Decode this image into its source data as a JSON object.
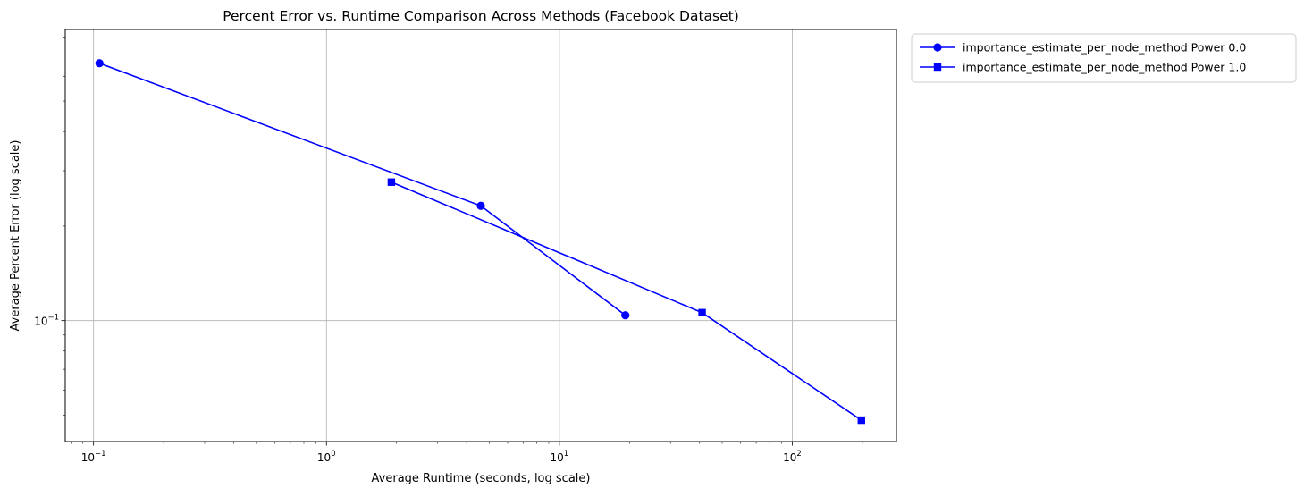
{
  "chart_data": {
    "type": "line",
    "title": "Percent Error vs. Runtime Comparison Across Methods (Facebook Dataset)",
    "xlabel": "Average Runtime (seconds, log scale)",
    "ylabel": "Average Percent Error (log scale)",
    "xscale": "log",
    "yscale": "log",
    "xlim": [
      0.0756,
      280
    ],
    "ylim": [
      0.0412,
      0.845
    ],
    "x_ticks": [
      {
        "value": 0.1,
        "base": "10",
        "exp": "−1"
      },
      {
        "value": 1,
        "base": "10",
        "exp": "0"
      },
      {
        "value": 10,
        "base": "10",
        "exp": "1"
      },
      {
        "value": 100,
        "base": "10",
        "exp": "2"
      }
    ],
    "y_ticks": [
      {
        "value": 0.1,
        "base": "10",
        "exp": "−1"
      }
    ],
    "grid": true,
    "legend_position": "outside upper right",
    "series": [
      {
        "name": "importance_estimate_per_node_method Power 0.0",
        "marker": "circle",
        "color": "#0000ff",
        "x": [
          0.106,
          4.6,
          19.2
        ],
        "y": [
          0.66,
          0.232,
          0.104
        ]
      },
      {
        "name": "importance_estimate_per_node_method Power 1.0",
        "marker": "square",
        "color": "#0000ff",
        "x": [
          1.9,
          41,
          198
        ],
        "y": [
          0.276,
          0.106,
          0.0482
        ]
      }
    ]
  }
}
